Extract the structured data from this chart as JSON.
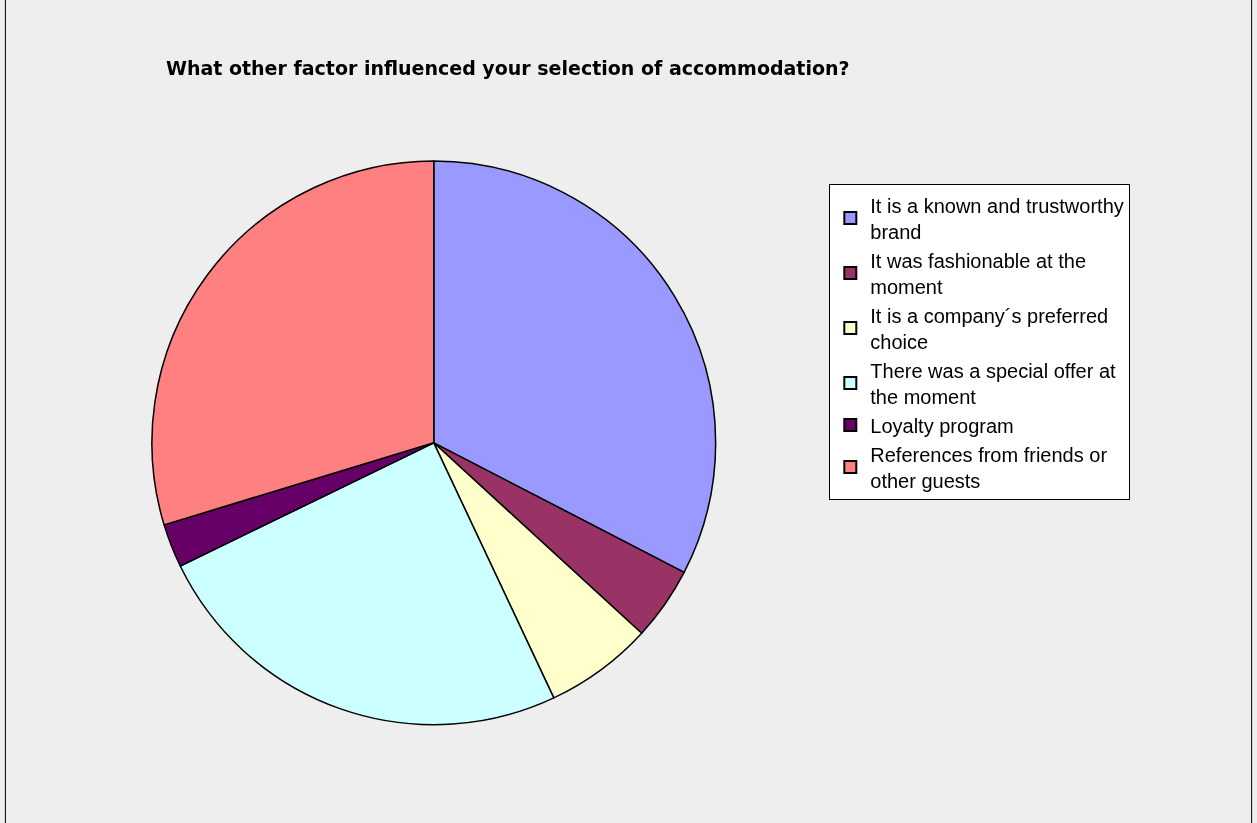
{
  "chart_data": {
    "type": "pie",
    "title": "What other factor influenced your selection of accommodation?",
    "categories": [
      "It is a known and trustworthy brand",
      "It was fashionable at the moment",
      "It is a company´s preferred choice",
      "There was a special offer at the moment",
      "Loyalty program",
      "References from friends or other guests"
    ],
    "values": [
      32.6,
      4.2,
      6.2,
      24.8,
      2.5,
      29.7
    ],
    "colors": [
      "#9999ff",
      "#993366",
      "#ffffcc",
      "#ccffff",
      "#660066",
      "#ff8080"
    ],
    "legend": "right"
  }
}
